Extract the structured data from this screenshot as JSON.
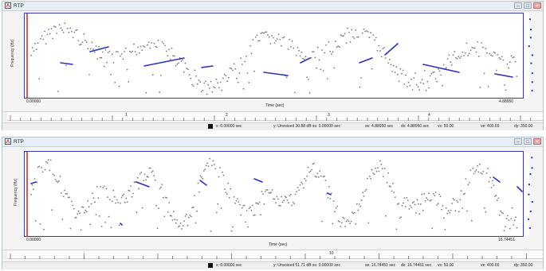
{
  "top": {
    "title": "RTP",
    "y_label": "Frequency (Hz)",
    "x_label": "Time (sec)",
    "x_start": "0.00000",
    "x_end": "4.88950",
    "ruler_labels": [
      "1",
      "2",
      "3",
      "4"
    ],
    "status": {
      "x": "x: 0.00000 sec",
      "y": "y: Unvoiced 30.88 dB  ss: 0.00000 sec",
      "se": "se: 4.88950 sec",
      "dx": "dx: 4.88950 sec",
      "vs": "vs: 50.00",
      "ve": "ve: 400.00",
      "dy": "dy: 350.00"
    }
  },
  "bottom": {
    "title": "RTP",
    "y_label": "Frequency (Hz)",
    "x_label": "Time (sec)",
    "x_start": "0.00000",
    "x_end": "16.74451",
    "ruler_labels": [
      "10"
    ],
    "status": {
      "x": "x: 0.00000 sec",
      "y": "y: Unvoiced 51.71 dB  ss: 0.00000 sec",
      "se": "se: 16.74451 sec",
      "dx": "dx: 16.74451 sec",
      "vs": "vs: 50.00",
      "ve": "ve: 400.00",
      "dy": "dy: 350.00"
    }
  },
  "colors": {
    "pitch_dots": "#7a7a7a",
    "voiced_segments": "#2b2fc4",
    "cursor": "#cc2222",
    "frame": "#3a3ab0"
  },
  "icons": [
    "app-icon",
    "minimize-icon",
    "maximize-icon",
    "close-icon",
    "channel-icon"
  ]
}
